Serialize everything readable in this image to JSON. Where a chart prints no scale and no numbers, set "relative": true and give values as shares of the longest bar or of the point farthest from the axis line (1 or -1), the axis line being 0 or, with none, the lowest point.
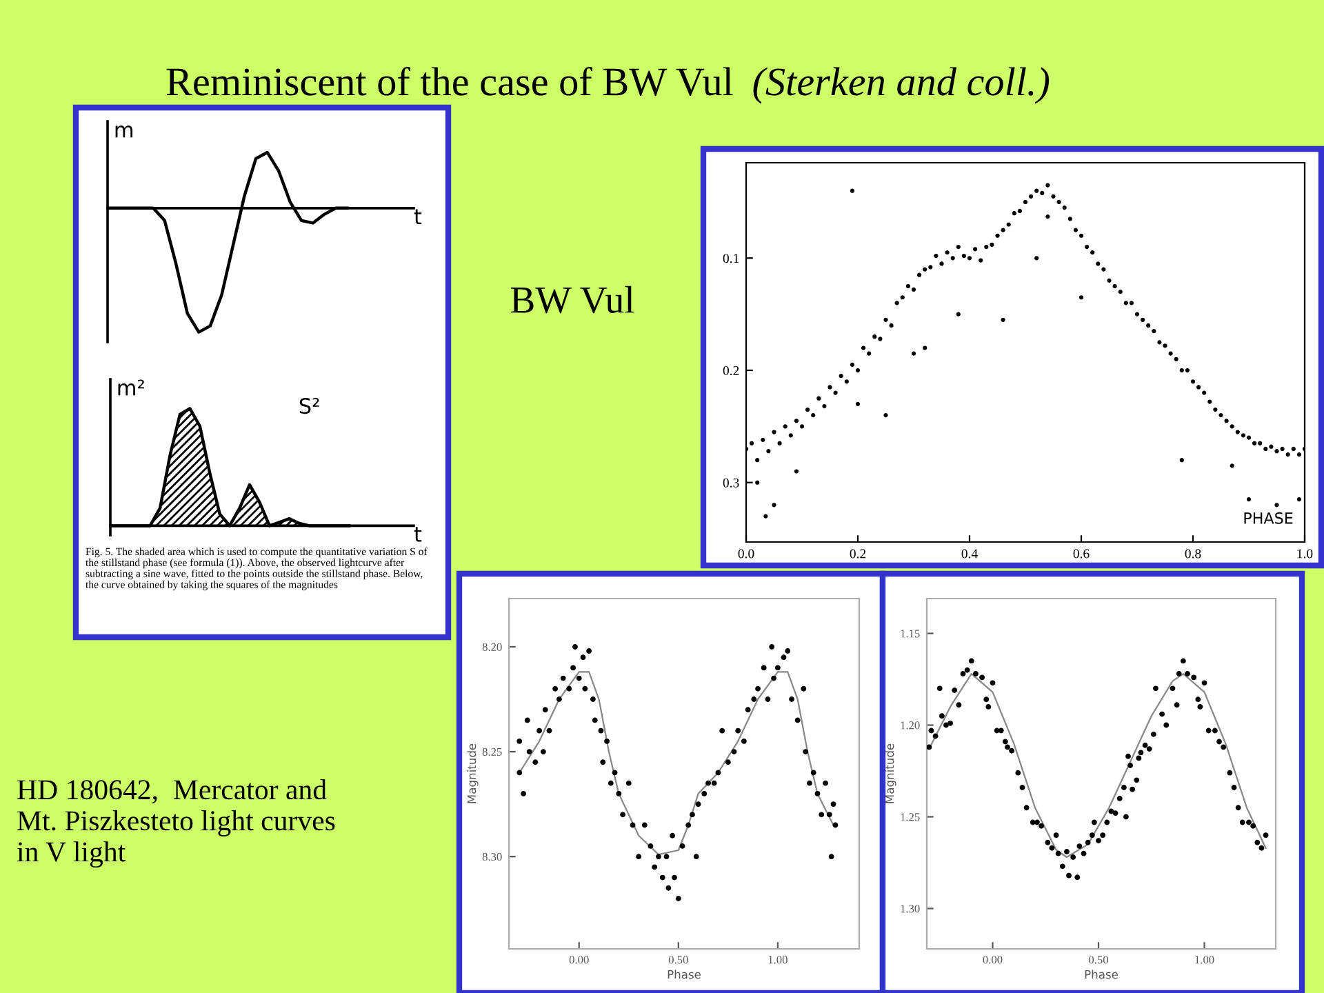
{
  "chart_data": [
    {
      "type": "line",
      "relative": true,
      "tick_labels": false,
      "xlabel": "t",
      "ylabel": "m",
      "color": "#000000",
      "annotations": [
        "Reminiscent of the case of BW Vul",
        "(Sterken and coll.)"
      ],
      "categories": [
        null,
        null,
        null,
        null,
        null,
        null,
        null,
        null,
        null,
        null,
        null,
        null,
        null,
        null,
        null,
        null,
        null,
        null,
        null,
        null,
        null,
        null
      ],
      "values": [
        0,
        0,
        0,
        0,
        0,
        -0.1,
        -0.45,
        -0.85,
        -1,
        -0.95,
        -0.7,
        -0.3,
        0.1,
        0.4,
        0.45,
        0.3,
        0.05,
        -0.1,
        -0.12,
        -0.05,
        0,
        0
      ]
    },
    {
      "type": "area",
      "relative": true,
      "tick_labels": false,
      "xlabel": "t",
      "ylabel": "m²",
      "color": "#000000",
      "annotations": [
        "S²",
        "Fig. 5. The shaded area which is used to compute the quantitative variation S of the stillstand phase (see formula (1)). Above, the observed lightcurve after subtracting a sine wave, fitted to the points outside the stillstand phase. Below, the curve obtained by taking the squares of the magnitudes"
      ],
      "categories": [
        null,
        null,
        null,
        null,
        null,
        null,
        null,
        null,
        null,
        null,
        null,
        null,
        null,
        null,
        null,
        null,
        null,
        null,
        null,
        null,
        null,
        null,
        null,
        null,
        null
      ],
      "values": [
        0,
        0,
        0,
        0,
        0,
        0.15,
        0.6,
        0.95,
        1,
        0.85,
        0.45,
        0.1,
        0,
        0.15,
        0.35,
        0.2,
        0,
        0.03,
        0.06,
        0.02,
        0,
        0,
        0,
        0,
        0
      ]
    },
    {
      "type": "scatter",
      "title": "BW Vul",
      "xlabel": "PHASE",
      "color": "#000000",
      "marker": "circle",
      "xlim": [
        0,
        1
      ],
      "ylim": [
        0.353,
        0.015
      ],
      "xticks": [
        {
          "value": 0,
          "label": "0.0"
        },
        0.2,
        0.4,
        0.6,
        0.8,
        {
          "value": 1,
          "label": "1.0"
        }
      ],
      "yticks": [
        0.1,
        0.2,
        0.3
      ],
      "x": [
        0.0,
        0.01,
        0.02,
        0.03,
        0.04,
        0.05,
        0.06,
        0.07,
        0.08,
        0.09,
        0.1,
        0.11,
        0.12,
        0.13,
        0.14,
        0.15,
        0.16,
        0.17,
        0.18,
        0.19,
        0.2,
        0.21,
        0.22,
        0.23,
        0.24,
        0.25,
        0.26,
        0.27,
        0.28,
        0.29,
        0.3,
        0.31,
        0.32,
        0.33,
        0.34,
        0.35,
        0.36,
        0.37,
        0.38,
        0.39,
        0.4,
        0.41,
        0.42,
        0.43,
        0.44,
        0.45,
        0.46,
        0.47,
        0.48,
        0.49,
        0.5,
        0.51,
        0.52,
        0.53,
        0.54,
        0.55,
        0.56,
        0.57,
        0.58,
        0.59,
        0.6,
        0.61,
        0.62,
        0.63,
        0.64,
        0.65,
        0.66,
        0.67,
        0.68,
        0.69,
        0.7,
        0.71,
        0.72,
        0.73,
        0.74,
        0.75,
        0.76,
        0.77,
        0.78,
        0.79,
        0.8,
        0.81,
        0.82,
        0.83,
        0.84,
        0.85,
        0.86,
        0.87,
        0.88,
        0.89,
        0.9,
        0.91,
        0.92,
        0.93,
        0.94,
        0.95,
        0.96,
        0.97,
        0.98,
        0.99,
        1.0,
        0.02,
        0.035,
        0.05,
        0.09,
        0.19,
        0.2,
        0.25,
        0.3,
        0.32,
        0.38,
        0.46,
        0.52,
        0.54,
        0.6,
        0.78,
        0.87,
        0.9,
        0.95,
        0.99
      ],
      "values": [
        0.27,
        0.265,
        0.28,
        0.262,
        0.272,
        0.255,
        0.265,
        0.25,
        0.258,
        0.245,
        0.25,
        0.235,
        0.24,
        0.225,
        0.232,
        0.215,
        0.22,
        0.205,
        0.21,
        0.195,
        0.2,
        0.18,
        0.185,
        0.17,
        0.172,
        0.155,
        0.16,
        0.14,
        0.135,
        0.125,
        0.128,
        0.115,
        0.11,
        0.108,
        0.098,
        0.105,
        0.095,
        0.1,
        0.09,
        0.098,
        0.1,
        0.092,
        0.102,
        0.09,
        0.088,
        0.08,
        0.075,
        0.07,
        0.06,
        0.058,
        0.05,
        0.045,
        0.04,
        0.042,
        0.035,
        0.045,
        0.05,
        0.055,
        0.065,
        0.075,
        0.08,
        0.09,
        0.095,
        0.105,
        0.11,
        0.12,
        0.125,
        0.13,
        0.14,
        0.14,
        0.15,
        0.155,
        0.16,
        0.165,
        0.175,
        0.178,
        0.185,
        0.19,
        0.2,
        0.2,
        0.21,
        0.215,
        0.22,
        0.228,
        0.235,
        0.24,
        0.245,
        0.25,
        0.255,
        0.258,
        0.26,
        0.265,
        0.265,
        0.27,
        0.268,
        0.272,
        0.27,
        0.275,
        0.27,
        0.275,
        0.27,
        0.3,
        0.33,
        0.32,
        0.29,
        0.04,
        0.23,
        0.24,
        0.185,
        0.18,
        0.15,
        0.155,
        0.1,
        0.063,
        0.135,
        0.28,
        0.285,
        0.315,
        0.32,
        0.315
      ]
    },
    {
      "type": "scatter",
      "xlabel": "Phase",
      "ylabel": "Magnitude",
      "annotations": [
        "HD 180642,  Mercator and\nMt. Piszkesteto light curves\nin V light"
      ],
      "xlim": [
        -0.353,
        1.41
      ],
      "ylim": [
        8.344,
        8.177
      ],
      "xticks": [
        {
          "value": 0,
          "label": "0.00"
        },
        {
          "value": 0.5,
          "label": "0.50"
        },
        {
          "value": 1,
          "label": "1.00"
        }
      ],
      "yticks": [
        {
          "value": 8.2,
          "label": "8.20"
        },
        {
          "value": 8.25,
          "label": "8.25"
        },
        {
          "value": 8.3,
          "label": "8.30"
        }
      ],
      "series": [
        {
          "type": "scatter",
          "marker": "circle",
          "color": "#000000",
          "x": [
            -0.3,
            -0.3,
            -0.28,
            -0.26,
            -0.25,
            -0.22,
            -0.2,
            -0.18,
            -0.17,
            -0.15,
            -0.12,
            -0.1,
            -0.08,
            -0.05,
            -0.03,
            -0.02,
            0.0,
            0.02,
            0.03,
            0.05,
            0.07,
            0.08,
            0.11,
            0.12,
            0.14,
            0.16,
            0.18,
            0.2,
            0.22,
            0.25,
            0.27,
            0.3,
            0.33,
            0.36,
            0.38,
            0.4,
            0.42,
            0.44,
            0.45,
            0.47,
            0.48,
            0.5,
            0.52,
            0.55,
            0.57,
            0.59,
            0.6,
            0.63,
            0.65,
            0.68,
            0.7,
            0.72,
            0.75,
            0.78,
            0.8,
            0.83,
            0.85,
            0.88,
            0.9,
            0.93,
            0.95,
            0.97,
            0.98,
            1.0,
            1.03,
            1.05,
            1.07,
            1.1,
            1.13,
            1.14,
            1.16,
            1.18,
            1.2,
            1.22,
            1.24,
            1.26,
            1.27,
            1.28,
            1.29
          ],
          "values": [
            8.26,
            8.245,
            8.27,
            8.235,
            8.25,
            8.255,
            8.24,
            8.25,
            8.23,
            8.24,
            8.22,
            8.225,
            8.215,
            8.22,
            8.21,
            8.2,
            8.215,
            8.205,
            8.22,
            8.202,
            8.225,
            8.235,
            8.24,
            8.255,
            8.245,
            8.265,
            8.26,
            8.27,
            8.28,
            8.265,
            8.285,
            8.3,
            8.285,
            8.295,
            8.305,
            8.3,
            8.31,
            8.3,
            8.315,
            8.29,
            8.31,
            8.32,
            8.295,
            8.285,
            8.28,
            8.3,
            8.275,
            8.27,
            8.265,
            8.265,
            8.26,
            8.24,
            8.255,
            8.25,
            8.24,
            8.245,
            8.23,
            8.225,
            8.22,
            8.21,
            8.225,
            8.2,
            8.215,
            8.21,
            8.205,
            8.202,
            8.225,
            8.235,
            8.22,
            8.25,
            8.265,
            8.26,
            8.27,
            8.28,
            8.265,
            8.28,
            8.3,
            8.275,
            8.285
          ]
        },
        {
          "type": "line",
          "color": "#888888",
          "x": [
            -0.3,
            -0.2,
            -0.1,
            0,
            0.05,
            0.1,
            0.15,
            0.2,
            0.3,
            0.4,
            0.5,
            0.55,
            0.6,
            0.7,
            0.8,
            0.9,
            1.0,
            1.05,
            1.1,
            1.15,
            1.2,
            1.28
          ],
          "values": [
            8.26,
            8.245,
            8.225,
            8.212,
            8.212,
            8.225,
            8.25,
            8.27,
            8.29,
            8.299,
            8.297,
            8.285,
            8.27,
            8.26,
            8.245,
            8.225,
            8.212,
            8.212,
            8.225,
            8.25,
            8.27,
            8.285
          ]
        }
      ]
    },
    {
      "type": "scatter",
      "xlabel": "Phase",
      "ylabel": "Magnitude",
      "xlim": [
        -0.311,
        1.337
      ],
      "ylim": [
        1.322,
        1.131
      ],
      "xticks": [
        {
          "value": 0,
          "label": "0.00"
        },
        {
          "value": 0.5,
          "label": "0.50"
        },
        {
          "value": 1,
          "label": "1.00"
        }
      ],
      "yticks": [
        1.15,
        {
          "value": 1.2,
          "label": "1.20"
        },
        1.25,
        {
          "value": 1.3,
          "label": "1.30"
        }
      ],
      "series": [
        {
          "type": "scatter",
          "marker": "circle",
          "color": "#000000",
          "x": [
            -0.3,
            -0.29,
            -0.27,
            -0.25,
            -0.24,
            -0.22,
            -0.2,
            -0.18,
            -0.16,
            -0.14,
            -0.12,
            -0.1,
            -0.08,
            -0.05,
            -0.03,
            -0.02,
            0.0,
            0.02,
            0.04,
            0.06,
            0.07,
            0.09,
            0.12,
            0.14,
            0.16,
            0.19,
            0.21,
            0.23,
            0.26,
            0.28,
            0.3,
            0.31,
            0.33,
            0.35,
            0.36,
            0.38,
            0.4,
            0.41,
            0.43,
            0.45,
            0.47,
            0.48,
            0.5,
            0.52,
            0.54,
            0.56,
            0.58,
            0.6,
            0.62,
            0.63,
            0.64,
            0.65,
            0.66,
            0.68,
            0.69,
            0.7,
            0.72,
            0.74,
            0.76,
            0.77,
            0.8,
            0.82,
            0.85,
            0.87,
            0.88,
            0.9,
            0.92,
            0.95,
            0.97,
            0.98,
            1.0,
            1.02,
            1.05,
            1.07,
            1.09,
            1.12,
            1.14,
            1.16,
            1.18,
            1.21,
            1.23,
            1.25,
            1.27,
            1.29
          ],
          "values": [
            1.212,
            1.203,
            1.206,
            1.18,
            1.195,
            1.2,
            1.199,
            1.181,
            1.189,
            1.172,
            1.17,
            1.165,
            1.172,
            1.174,
            1.186,
            1.19,
            1.177,
            1.203,
            1.203,
            1.209,
            1.212,
            1.214,
            1.226,
            1.234,
            1.245,
            1.253,
            1.253,
            1.255,
            1.264,
            1.267,
            1.26,
            1.27,
            1.277,
            1.269,
            1.282,
            1.272,
            1.283,
            1.266,
            1.27,
            1.264,
            1.26,
            1.253,
            1.263,
            1.26,
            1.253,
            1.247,
            1.248,
            1.24,
            1.234,
            1.25,
            1.217,
            1.222,
            1.235,
            1.23,
            1.218,
            1.215,
            1.211,
            1.213,
            1.205,
            1.18,
            1.194,
            1.2,
            1.18,
            1.189,
            1.172,
            1.165,
            1.172,
            1.174,
            1.186,
            1.19,
            1.177,
            1.203,
            1.203,
            1.209,
            1.212,
            1.226,
            1.234,
            1.245,
            1.253,
            1.253,
            1.255,
            1.264,
            1.267,
            1.26
          ]
        },
        {
          "type": "line",
          "color": "#888888",
          "x": [
            -0.3,
            -0.2,
            -0.1,
            0.0,
            0.1,
            0.2,
            0.3,
            0.35,
            0.45,
            0.55,
            0.65,
            0.75,
            0.85,
            0.9,
            1.0,
            1.1,
            1.2,
            1.29
          ],
          "values": [
            1.213,
            1.19,
            1.172,
            1.182,
            1.21,
            1.245,
            1.268,
            1.272,
            1.265,
            1.245,
            1.22,
            1.195,
            1.176,
            1.172,
            1.182,
            1.21,
            1.245,
            1.267
          ]
        }
      ]
    }
  ]
}
